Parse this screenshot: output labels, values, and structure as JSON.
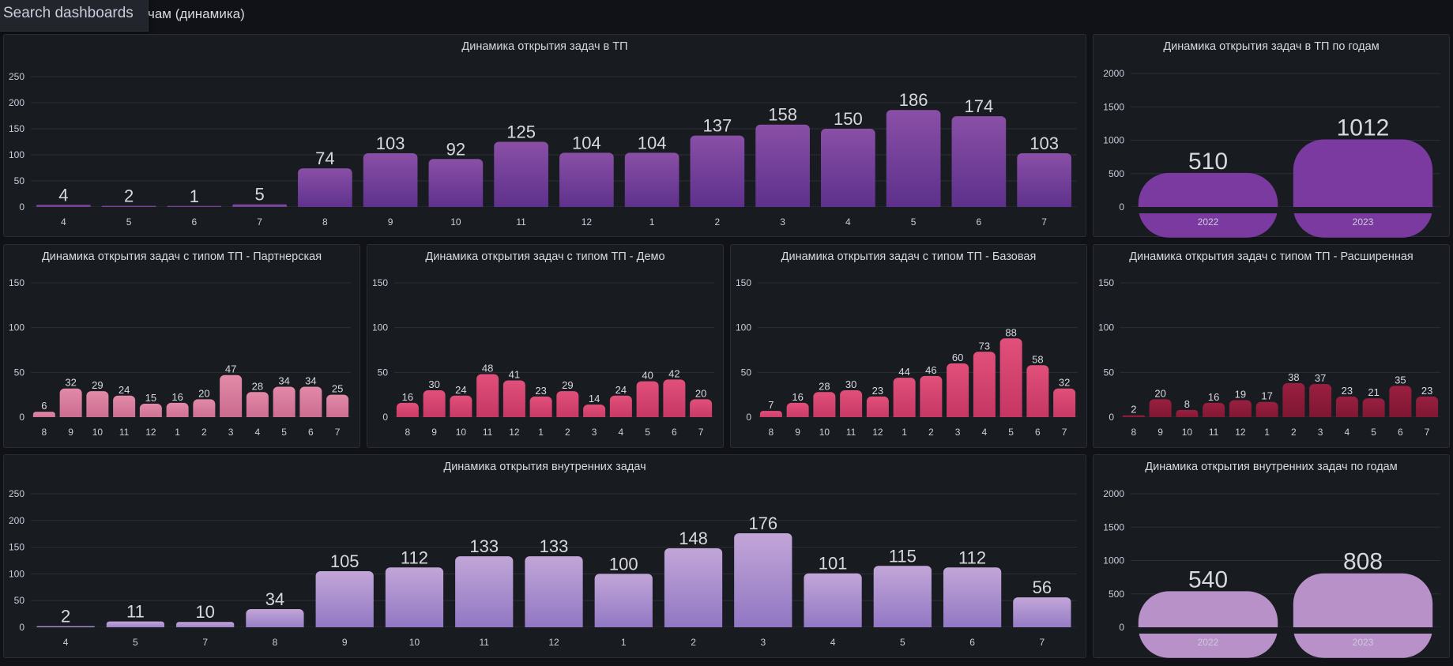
{
  "search": {
    "label": "Search dashboards"
  },
  "dashboard": {
    "title": "чам (динамика)"
  },
  "colors": {
    "purple_grad": [
      "#8a4fa6",
      "#5a2f8a"
    ],
    "purple_solid": "#7b3a9f",
    "pink_light": [
      "#e28aa8",
      "#c8688c"
    ],
    "pink_mid": [
      "#e0507a",
      "#c43462"
    ],
    "pink_dark": [
      "#9a1f40",
      "#7a1530"
    ],
    "lavender_grad": [
      "#c2a6d8",
      "#8e74c2"
    ],
    "lavender_solid": "#b891c8"
  },
  "chart_data": [
    {
      "id": "tp-dynamics",
      "type": "bar",
      "title": "Динамика открытия задач в ТП",
      "categories": [
        "4",
        "5",
        "6",
        "7",
        "8",
        "9",
        "10",
        "11",
        "12",
        "1",
        "2",
        "3",
        "4",
        "5",
        "6",
        "7"
      ],
      "values": [
        4,
        2,
        1,
        5,
        74,
        103,
        92,
        125,
        104,
        104,
        137,
        158,
        150,
        186,
        174,
        103
      ],
      "ylim": [
        0,
        250
      ],
      "yticks": [
        0,
        50,
        100,
        150,
        200,
        250
      ],
      "grid": true,
      "style": "purple_grad"
    },
    {
      "id": "tp-by-year",
      "type": "bar",
      "title": "Динамика открытия задач в ТП по годам",
      "categories": [
        "2022",
        "2023"
      ],
      "values": [
        510,
        1012
      ],
      "ylim": [
        0,
        2000
      ],
      "yticks": [
        0,
        500,
        1000,
        1500,
        2000
      ],
      "grid": true,
      "style": "purple_solid"
    },
    {
      "id": "tp-partner",
      "type": "bar",
      "title": "Динамика открытия задач с типом ТП - Партнерская",
      "categories": [
        "8",
        "9",
        "10",
        "11",
        "12",
        "1",
        "2",
        "3",
        "4",
        "5",
        "6",
        "7"
      ],
      "values": [
        6,
        32,
        29,
        24,
        15,
        16,
        20,
        47,
        28,
        34,
        34,
        25
      ],
      "ylim": [
        0,
        150
      ],
      "yticks": [
        0,
        50,
        100,
        150
      ],
      "grid": true,
      "style": "pink_light"
    },
    {
      "id": "tp-demo",
      "type": "bar",
      "title": "Динамика открытия задач с типом ТП - Демо",
      "categories": [
        "8",
        "9",
        "10",
        "11",
        "12",
        "1",
        "2",
        "3",
        "4",
        "5",
        "6",
        "7"
      ],
      "values": [
        16,
        30,
        24,
        48,
        41,
        23,
        29,
        14,
        24,
        40,
        42,
        20
      ],
      "ylim": [
        0,
        150
      ],
      "yticks": [
        0,
        50,
        100,
        150
      ],
      "grid": true,
      "style": "pink_mid"
    },
    {
      "id": "tp-basic",
      "type": "bar",
      "title": "Динамика открытия задач с типом ТП - Базовая",
      "categories": [
        "8",
        "9",
        "10",
        "11",
        "12",
        "1",
        "2",
        "3",
        "4",
        "5",
        "6",
        "7"
      ],
      "values": [
        7,
        16,
        28,
        30,
        23,
        44,
        46,
        60,
        73,
        88,
        58,
        32
      ],
      "ylim": [
        0,
        150
      ],
      "yticks": [
        0,
        50,
        100,
        150
      ],
      "grid": true,
      "style": "pink_mid"
    },
    {
      "id": "tp-extended",
      "type": "bar",
      "title": "Динамика открытия задач с типом ТП - Расширенная",
      "categories": [
        "8",
        "9",
        "10",
        "11",
        "12",
        "1",
        "2",
        "3",
        "4",
        "5",
        "6",
        "7"
      ],
      "values": [
        2,
        20,
        8,
        16,
        19,
        17,
        38,
        37,
        23,
        21,
        35,
        23
      ],
      "ylim": [
        0,
        150
      ],
      "yticks": [
        0,
        50,
        100,
        150
      ],
      "grid": true,
      "style": "pink_dark"
    },
    {
      "id": "internal-dynamics",
      "type": "bar",
      "title": "Динамика открытия внутренних задач",
      "categories": [
        "4",
        "5",
        "7",
        "8",
        "9",
        "10",
        "11",
        "12",
        "1",
        "2",
        "3",
        "4",
        "5",
        "6",
        "7"
      ],
      "values": [
        2,
        11,
        10,
        34,
        105,
        112,
        133,
        133,
        100,
        148,
        176,
        101,
        115,
        112,
        56
      ],
      "ylim": [
        0,
        250
      ],
      "yticks": [
        0,
        50,
        100,
        150,
        200,
        250
      ],
      "grid": true,
      "style": "lavender_grad"
    },
    {
      "id": "internal-by-year",
      "type": "bar",
      "title": "Динамика открытия внутренних задач по годам",
      "categories": [
        "2022",
        "2023"
      ],
      "values": [
        540,
        808
      ],
      "ylim": [
        0,
        2000
      ],
      "yticks": [
        0,
        500,
        1000,
        1500,
        2000
      ],
      "grid": true,
      "style": "lavender_solid"
    }
  ]
}
